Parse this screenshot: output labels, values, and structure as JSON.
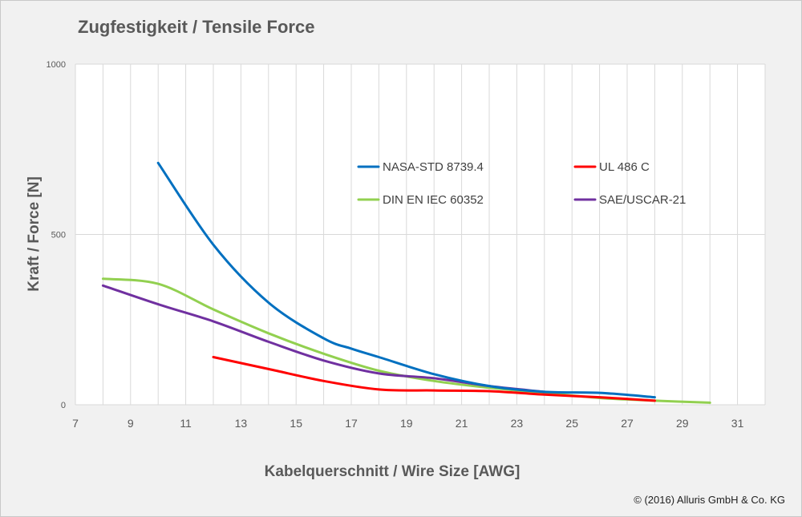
{
  "chart_data": {
    "type": "line",
    "title": "Zugfestigkeit / Tensile Force",
    "xlabel": "Kabelquerschnitt / Wire Size [AWG]",
    "ylabel": "Kraft / Force [N]",
    "xlim": [
      7,
      32
    ],
    "ylim": [
      0,
      1000
    ],
    "xticks": [
      7,
      9,
      11,
      13,
      15,
      17,
      19,
      21,
      23,
      25,
      27,
      29,
      31
    ],
    "yticks": [
      0,
      500,
      1000
    ],
    "grid": true,
    "legend_position": "upper-right",
    "series": [
      {
        "name": "NASA-STD 8739.4",
        "color": "#0070c0",
        "points": [
          [
            10,
            710
          ],
          [
            12,
            470
          ],
          [
            14,
            300
          ],
          [
            16,
            195
          ],
          [
            17,
            165
          ],
          [
            18,
            140
          ],
          [
            20,
            90
          ],
          [
            22,
            55
          ],
          [
            24,
            38
          ],
          [
            26,
            35
          ],
          [
            28,
            22
          ]
        ]
      },
      {
        "name": "UL 486 C",
        "color": "#ff0000",
        "points": [
          [
            12,
            140
          ],
          [
            14,
            105
          ],
          [
            16,
            70
          ],
          [
            18,
            45
          ],
          [
            20,
            42
          ],
          [
            22,
            40
          ],
          [
            24,
            30
          ],
          [
            26,
            22
          ],
          [
            28,
            12
          ]
        ]
      },
      {
        "name": "DIN EN IEC 60352",
        "color": "#92d050",
        "points": [
          [
            8,
            370
          ],
          [
            10,
            355
          ],
          [
            12,
            280
          ],
          [
            14,
            210
          ],
          [
            16,
            150
          ],
          [
            18,
            100
          ],
          [
            20,
            70
          ],
          [
            22,
            50
          ],
          [
            24,
            35
          ],
          [
            26,
            20
          ],
          [
            28,
            12
          ],
          [
            30,
            6
          ]
        ]
      },
      {
        "name": "SAE/USCAR-21",
        "color": "#7030a0",
        "points": [
          [
            8,
            350
          ],
          [
            10,
            295
          ],
          [
            12,
            245
          ],
          [
            14,
            185
          ],
          [
            16,
            130
          ],
          [
            18,
            92
          ],
          [
            20,
            78
          ],
          [
            22,
            55
          ],
          [
            24,
            38
          ]
        ]
      }
    ]
  },
  "copyright": "© (2016) Alluris GmbH & Co. KG",
  "colors": {
    "background": "#f1f1f1",
    "plot_background": "#ffffff",
    "grid": "#d9d9d9",
    "text": "#595959"
  }
}
